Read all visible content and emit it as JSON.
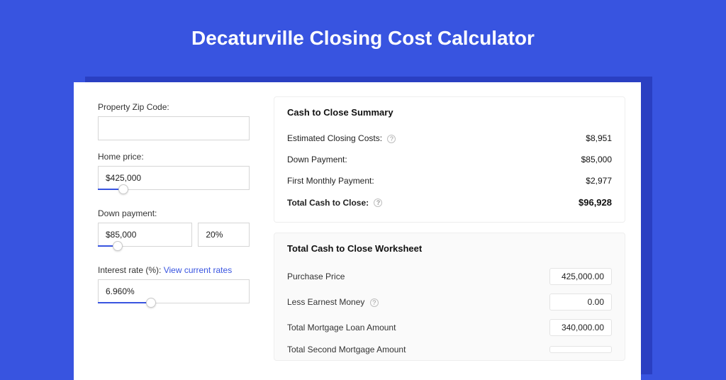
{
  "colors": {
    "page_bg": "#3854e0",
    "shadow_bg": "#2a3fc2",
    "card_bg": "#ffffff",
    "title_color": "#ffffff",
    "link_color": "#3854e0",
    "input_border": "#d6d6d6",
    "panel_border": "#eeeeee",
    "worksheet_bg": "#fafafa",
    "slider_fill": "#3854e0"
  },
  "title": "Decaturville Closing Cost Calculator",
  "left": {
    "zip": {
      "label": "Property Zip Code:",
      "value": ""
    },
    "home_price": {
      "label": "Home price:",
      "value": "$425,000",
      "slider_pct": 17
    },
    "down_payment": {
      "label": "Down payment:",
      "value": "$85,000",
      "pct_value": "20%",
      "slider_pct": 20
    },
    "interest": {
      "label_prefix": "Interest rate (%): ",
      "link_text": "View current rates",
      "value": "6.960%",
      "slider_pct": 35
    }
  },
  "summary": {
    "title": "Cash to Close Summary",
    "rows": [
      {
        "label": "Estimated Closing Costs:",
        "value": "$8,951",
        "help": true
      },
      {
        "label": "Down Payment:",
        "value": "$85,000",
        "help": false
      },
      {
        "label": "First Monthly Payment:",
        "value": "$2,977",
        "help": false
      }
    ],
    "total": {
      "label": "Total Cash to Close:",
      "value": "$96,928",
      "help": true
    }
  },
  "worksheet": {
    "title": "Total Cash to Close Worksheet",
    "rows": [
      {
        "label": "Purchase Price",
        "value": "425,000.00",
        "help": false
      },
      {
        "label": "Less Earnest Money",
        "value": "0.00",
        "help": true
      },
      {
        "label": "Total Mortgage Loan Amount",
        "value": "340,000.00",
        "help": false
      },
      {
        "label": "Total Second Mortgage Amount",
        "value": "",
        "help": false
      }
    ]
  }
}
